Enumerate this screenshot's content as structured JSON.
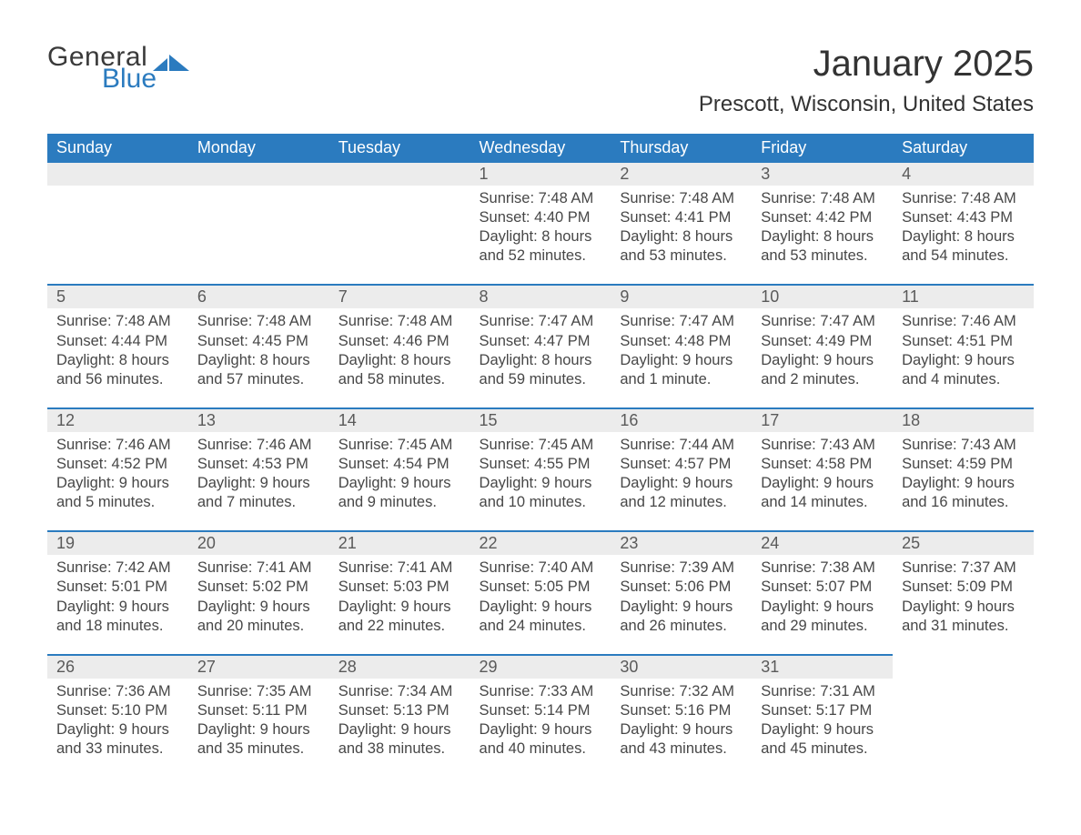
{
  "brand": {
    "line1": "General",
    "line2": "Blue",
    "logo_color": "#2b7bbf"
  },
  "title": "January 2025",
  "location": "Prescott, Wisconsin, United States",
  "colors": {
    "header_bg": "#2b7bbf",
    "header_text": "#ffffff",
    "daynum_bg": "#ececec",
    "rule": "#2b7bbf",
    "body_text": "#474747"
  },
  "typography": {
    "title_fontsize": 40,
    "location_fontsize": 24,
    "weekday_fontsize": 18,
    "daynum_fontsize": 18,
    "body_fontsize": 16.5
  },
  "layout": {
    "columns": 7,
    "rows": 5,
    "start_column_index": 3
  },
  "weekdays": [
    "Sunday",
    "Monday",
    "Tuesday",
    "Wednesday",
    "Thursday",
    "Friday",
    "Saturday"
  ],
  "days": [
    {
      "n": 1,
      "sunrise": "7:48 AM",
      "sunset": "4:40 PM",
      "daylight": "8 hours and 52 minutes."
    },
    {
      "n": 2,
      "sunrise": "7:48 AM",
      "sunset": "4:41 PM",
      "daylight": "8 hours and 53 minutes."
    },
    {
      "n": 3,
      "sunrise": "7:48 AM",
      "sunset": "4:42 PM",
      "daylight": "8 hours and 53 minutes."
    },
    {
      "n": 4,
      "sunrise": "7:48 AM",
      "sunset": "4:43 PM",
      "daylight": "8 hours and 54 minutes."
    },
    {
      "n": 5,
      "sunrise": "7:48 AM",
      "sunset": "4:44 PM",
      "daylight": "8 hours and 56 minutes."
    },
    {
      "n": 6,
      "sunrise": "7:48 AM",
      "sunset": "4:45 PM",
      "daylight": "8 hours and 57 minutes."
    },
    {
      "n": 7,
      "sunrise": "7:48 AM",
      "sunset": "4:46 PM",
      "daylight": "8 hours and 58 minutes."
    },
    {
      "n": 8,
      "sunrise": "7:47 AM",
      "sunset": "4:47 PM",
      "daylight": "8 hours and 59 minutes."
    },
    {
      "n": 9,
      "sunrise": "7:47 AM",
      "sunset": "4:48 PM",
      "daylight": "9 hours and 1 minute."
    },
    {
      "n": 10,
      "sunrise": "7:47 AM",
      "sunset": "4:49 PM",
      "daylight": "9 hours and 2 minutes."
    },
    {
      "n": 11,
      "sunrise": "7:46 AM",
      "sunset": "4:51 PM",
      "daylight": "9 hours and 4 minutes."
    },
    {
      "n": 12,
      "sunrise": "7:46 AM",
      "sunset": "4:52 PM",
      "daylight": "9 hours and 5 minutes."
    },
    {
      "n": 13,
      "sunrise": "7:46 AM",
      "sunset": "4:53 PM",
      "daylight": "9 hours and 7 minutes."
    },
    {
      "n": 14,
      "sunrise": "7:45 AM",
      "sunset": "4:54 PM",
      "daylight": "9 hours and 9 minutes."
    },
    {
      "n": 15,
      "sunrise": "7:45 AM",
      "sunset": "4:55 PM",
      "daylight": "9 hours and 10 minutes."
    },
    {
      "n": 16,
      "sunrise": "7:44 AM",
      "sunset": "4:57 PM",
      "daylight": "9 hours and 12 minutes."
    },
    {
      "n": 17,
      "sunrise": "7:43 AM",
      "sunset": "4:58 PM",
      "daylight": "9 hours and 14 minutes."
    },
    {
      "n": 18,
      "sunrise": "7:43 AM",
      "sunset": "4:59 PM",
      "daylight": "9 hours and 16 minutes."
    },
    {
      "n": 19,
      "sunrise": "7:42 AM",
      "sunset": "5:01 PM",
      "daylight": "9 hours and 18 minutes."
    },
    {
      "n": 20,
      "sunrise": "7:41 AM",
      "sunset": "5:02 PM",
      "daylight": "9 hours and 20 minutes."
    },
    {
      "n": 21,
      "sunrise": "7:41 AM",
      "sunset": "5:03 PM",
      "daylight": "9 hours and 22 minutes."
    },
    {
      "n": 22,
      "sunrise": "7:40 AM",
      "sunset": "5:05 PM",
      "daylight": "9 hours and 24 minutes."
    },
    {
      "n": 23,
      "sunrise": "7:39 AM",
      "sunset": "5:06 PM",
      "daylight": "9 hours and 26 minutes."
    },
    {
      "n": 24,
      "sunrise": "7:38 AM",
      "sunset": "5:07 PM",
      "daylight": "9 hours and 29 minutes."
    },
    {
      "n": 25,
      "sunrise": "7:37 AM",
      "sunset": "5:09 PM",
      "daylight": "9 hours and 31 minutes."
    },
    {
      "n": 26,
      "sunrise": "7:36 AM",
      "sunset": "5:10 PM",
      "daylight": "9 hours and 33 minutes."
    },
    {
      "n": 27,
      "sunrise": "7:35 AM",
      "sunset": "5:11 PM",
      "daylight": "9 hours and 35 minutes."
    },
    {
      "n": 28,
      "sunrise": "7:34 AM",
      "sunset": "5:13 PM",
      "daylight": "9 hours and 38 minutes."
    },
    {
      "n": 29,
      "sunrise": "7:33 AM",
      "sunset": "5:14 PM",
      "daylight": "9 hours and 40 minutes."
    },
    {
      "n": 30,
      "sunrise": "7:32 AM",
      "sunset": "5:16 PM",
      "daylight": "9 hours and 43 minutes."
    },
    {
      "n": 31,
      "sunrise": "7:31 AM",
      "sunset": "5:17 PM",
      "daylight": "9 hours and 45 minutes."
    }
  ],
  "labels": {
    "sunrise": "Sunrise:",
    "sunset": "Sunset:",
    "daylight": "Daylight:"
  }
}
